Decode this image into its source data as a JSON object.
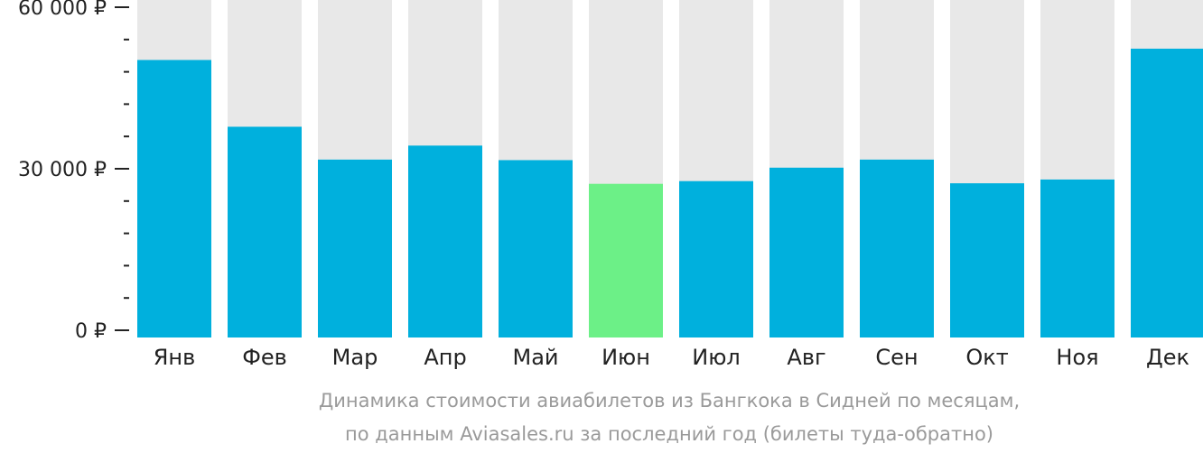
{
  "chart_data": {
    "type": "bar",
    "categories": [
      "Янв",
      "Фев",
      "Мар",
      "Апр",
      "Май",
      "Июн",
      "Июл",
      "Авг",
      "Сен",
      "Окт",
      "Ноя",
      "Дек"
    ],
    "values": [
      50200,
      37800,
      31700,
      34300,
      31600,
      27200,
      27700,
      30200,
      31700,
      27300,
      28000,
      52300
    ],
    "ylim": [
      0,
      60000
    ],
    "yticks": [
      {
        "value": 0,
        "label": "0 ₽"
      },
      {
        "value": 30000,
        "label": "30 000 ₽"
      },
      {
        "value": 60000,
        "label": "60 000 ₽"
      }
    ],
    "minor_tick_step": 6000,
    "highlight_index": 5,
    "colors": {
      "bar": "#00b0dd",
      "highlight": "#6cf087",
      "background_bar": "#e8e8e8",
      "axis": "#222222"
    },
    "caption_lines": [
      "Динамика стоимости авиабилетов из Бангкока в Сидней по месяцам,",
      "по данным Aviasales.ru за последний год (билеты туда-обратно)"
    ],
    "grid": false,
    "legend": "none"
  }
}
